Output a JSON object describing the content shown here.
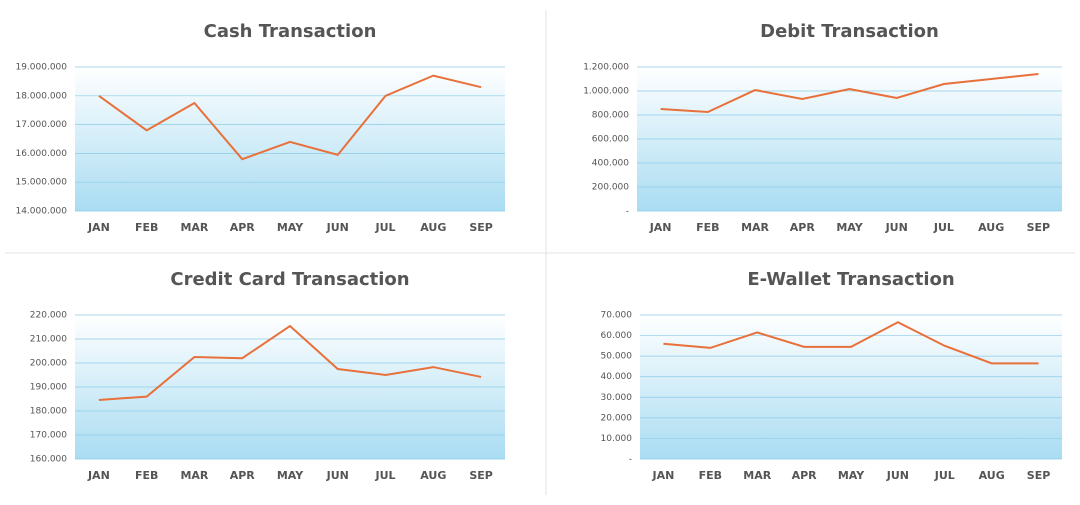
{
  "chart_data": [
    {
      "type": "line",
      "title": "Cash Transaction",
      "categories": [
        "JAN",
        "FEB",
        "MAR",
        "APR",
        "MAY",
        "JUN",
        "JUL",
        "AUG",
        "SEP"
      ],
      "values": [
        18000000,
        16800000,
        17750000,
        15800000,
        16400000,
        15950000,
        18000000,
        18700000,
        18300000
      ],
      "color": "#e8703a",
      "grid": true,
      "ylim": [
        14000000,
        19000000
      ],
      "yticks": [
        {
          "value": 14000000,
          "label": "14.000.000"
        },
        {
          "value": 15000000,
          "label": "15.000.000"
        },
        {
          "value": 16000000,
          "label": "16.000.000"
        },
        {
          "value": 17000000,
          "label": "17.000.000"
        },
        {
          "value": 18000000,
          "label": "18.000.000"
        },
        {
          "value": 19000000,
          "label": "19.000.000"
        }
      ]
    },
    {
      "type": "line",
      "title": "Debit Transaction",
      "categories": [
        "JAN",
        "FEB",
        "MAR",
        "APR",
        "MAY",
        "JUN",
        "JUL",
        "AUG",
        "SEP"
      ],
      "values": [
        850000,
        825000,
        1008000,
        933000,
        1017000,
        942000,
        1058000,
        1100000,
        1142000
      ],
      "color": "#e8703a",
      "grid": true,
      "ylim": [
        0,
        1200000
      ],
      "yticks": [
        {
          "value": 0,
          "label": "-"
        },
        {
          "value": 200000,
          "label": "200.000"
        },
        {
          "value": 400000,
          "label": "400.000"
        },
        {
          "value": 600000,
          "label": "600.000"
        },
        {
          "value": 800000,
          "label": "800.000"
        },
        {
          "value": 1000000,
          "label": "1.000.000"
        },
        {
          "value": 1200000,
          "label": "1.200.000"
        }
      ]
    },
    {
      "type": "line",
      "title": "Credit Card Transaction",
      "categories": [
        "JAN",
        "FEB",
        "MAR",
        "APR",
        "MAY",
        "JUN",
        "JUL",
        "AUG",
        "SEP"
      ],
      "values": [
        184600,
        186000,
        202500,
        202000,
        215400,
        197500,
        195000,
        198300,
        194200
      ],
      "color": "#e8703a",
      "grid": true,
      "ylim": [
        160000,
        220000
      ],
      "yticks": [
        {
          "value": 160000,
          "label": "160.000"
        },
        {
          "value": 170000,
          "label": "170.000"
        },
        {
          "value": 180000,
          "label": "180.000"
        },
        {
          "value": 190000,
          "label": "190.000"
        },
        {
          "value": 200000,
          "label": "200.000"
        },
        {
          "value": 210000,
          "label": "210.000"
        },
        {
          "value": 220000,
          "label": "220.000"
        }
      ]
    },
    {
      "type": "line",
      "title": "E-Wallet Transaction",
      "categories": [
        "JAN",
        "FEB",
        "MAR",
        "APR",
        "MAY",
        "JUN",
        "JUL",
        "AUG",
        "SEP"
      ],
      "values": [
        56000,
        54000,
        61500,
        54500,
        54500,
        66500,
        55000,
        46500,
        46500
      ],
      "color": "#e8703a",
      "grid": true,
      "ylim": [
        0,
        70000
      ],
      "yticks": [
        {
          "value": 0,
          "label": "-"
        },
        {
          "value": 10000,
          "label": "10.000"
        },
        {
          "value": 20000,
          "label": "20.000"
        },
        {
          "value": 30000,
          "label": "30.000"
        },
        {
          "value": 40000,
          "label": "40.000"
        },
        {
          "value": 50000,
          "label": "50.000"
        },
        {
          "value": 60000,
          "label": "60.000"
        },
        {
          "value": 70000,
          "label": "70.000"
        }
      ]
    }
  ]
}
